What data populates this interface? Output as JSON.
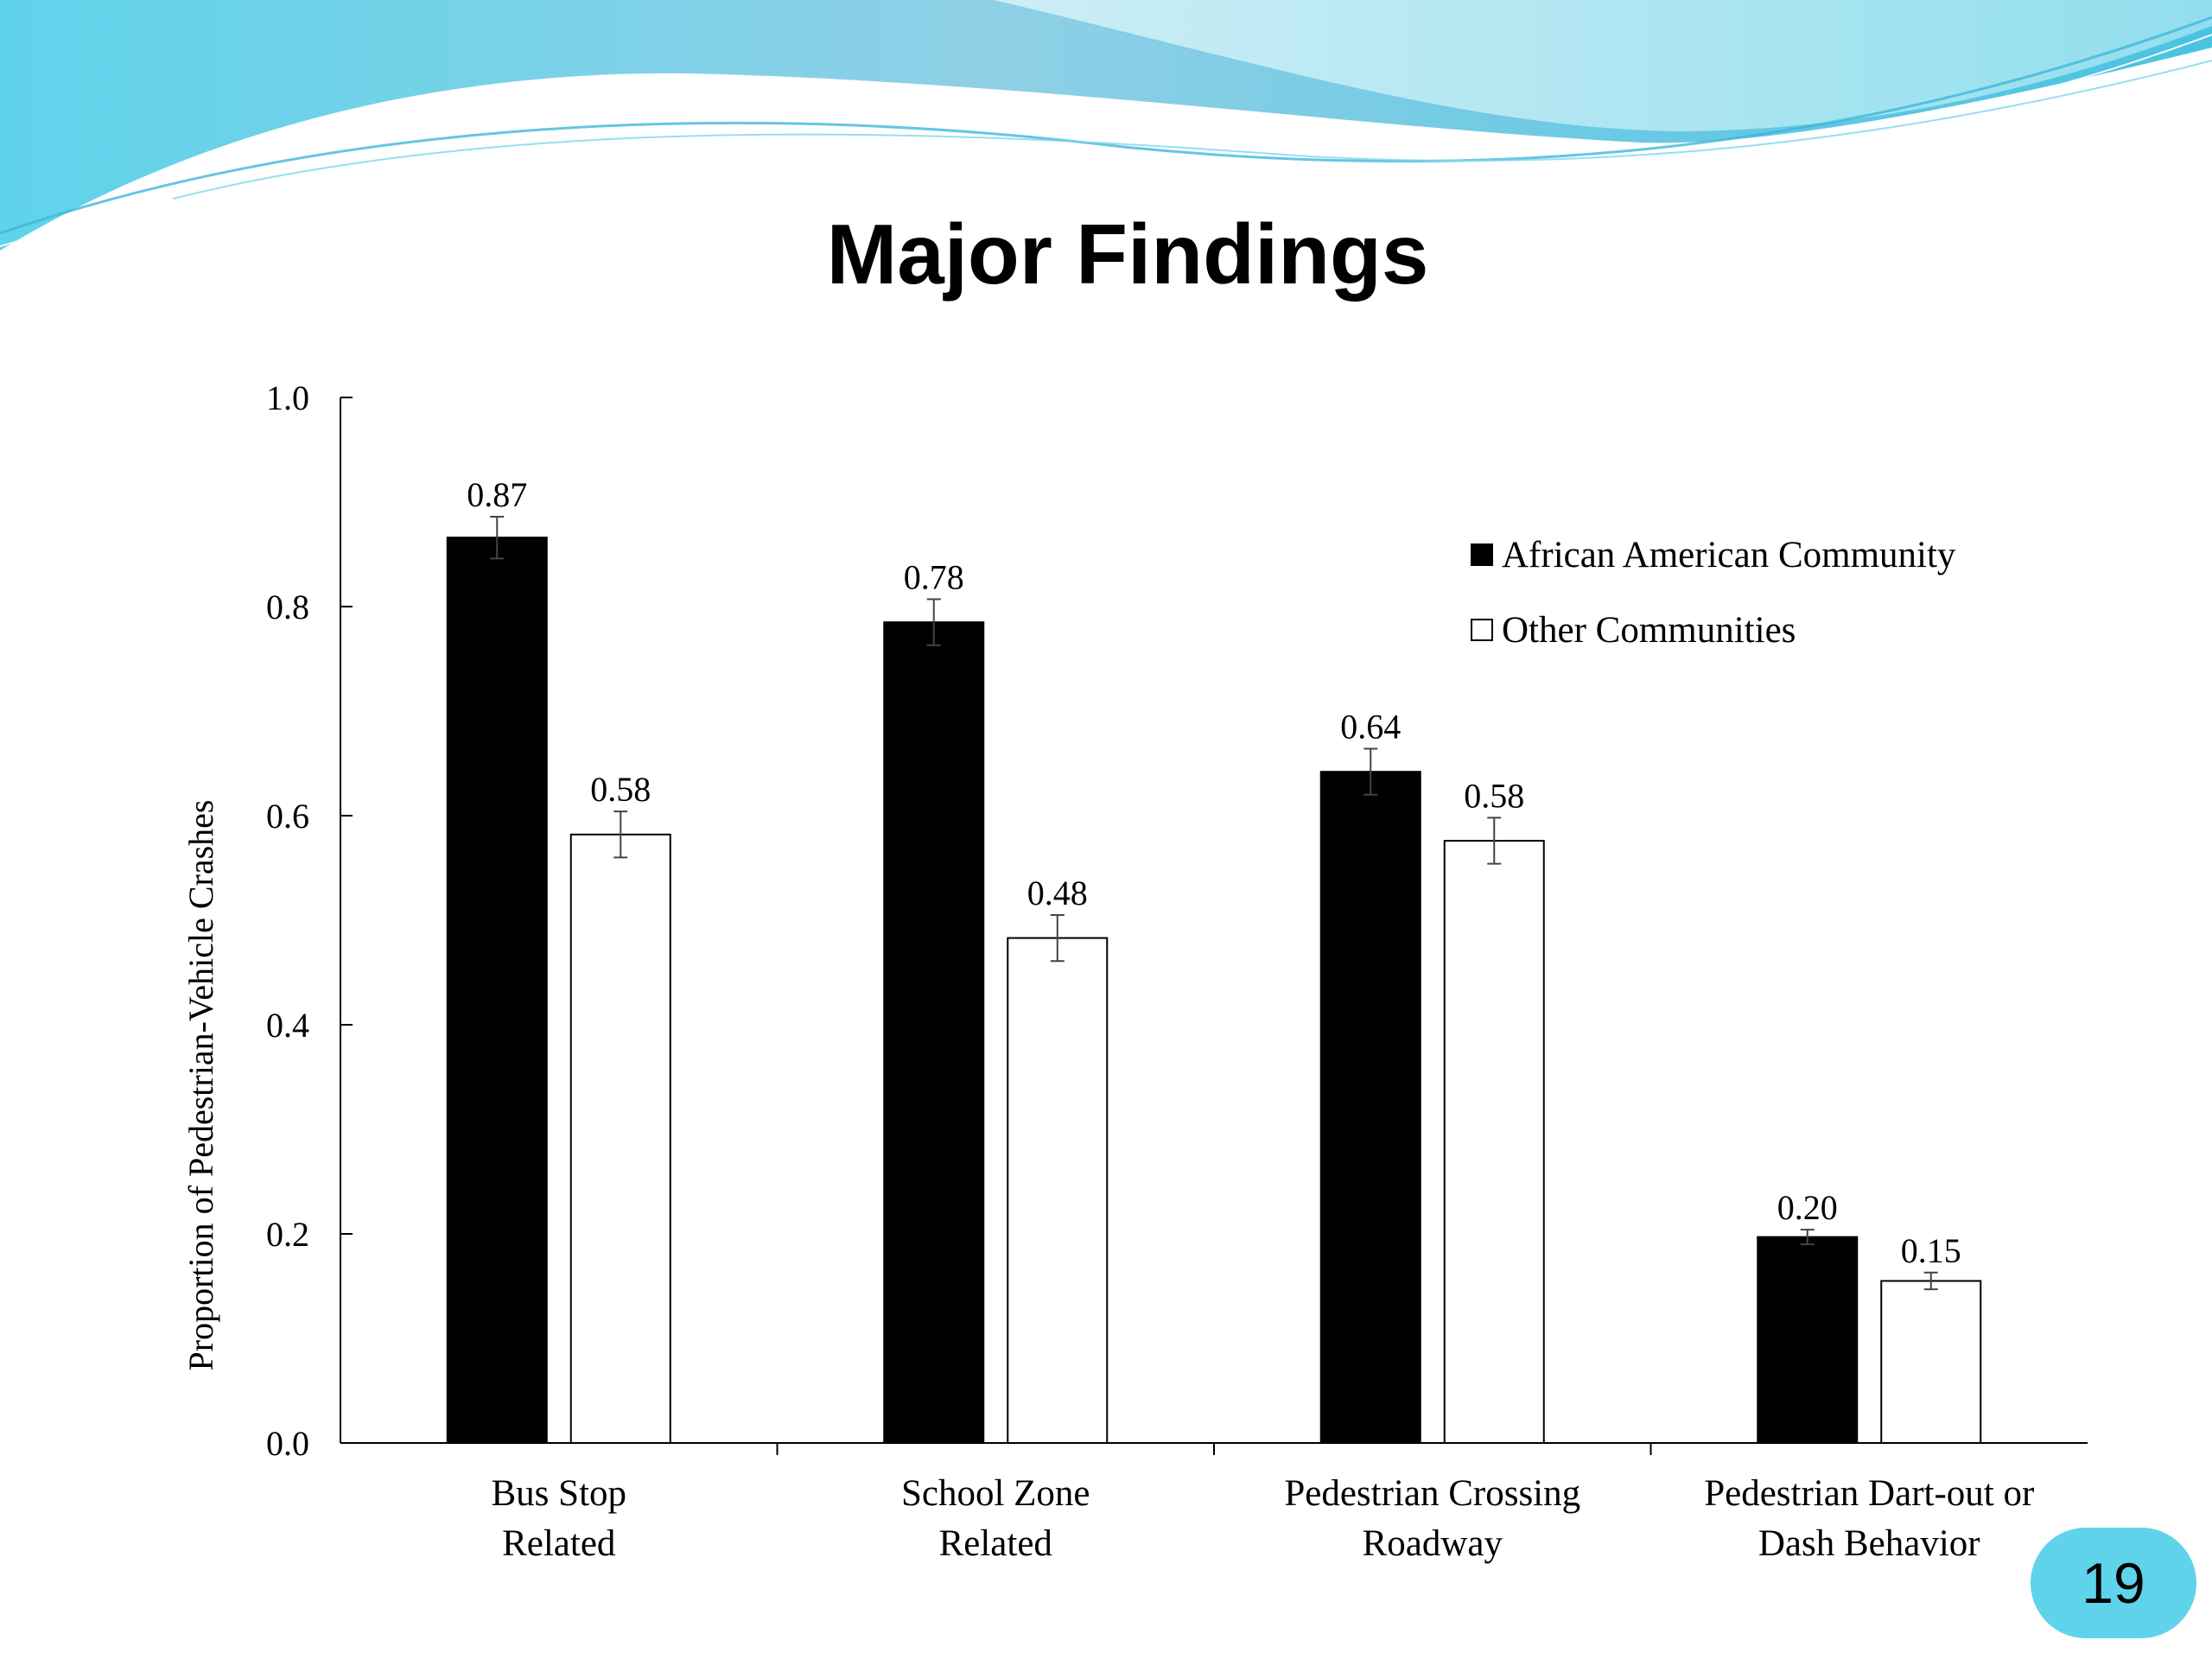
{
  "slide": {
    "title": "Major Findings",
    "page_number": "19",
    "colors": {
      "wave_light": "#bfeef6",
      "wave_mid": "#7fd6ea",
      "wave_dark": "#3fb6dc",
      "badge": "#5fd3ea"
    }
  },
  "chart_data": {
    "type": "bar",
    "title": "",
    "xlabel": "",
    "ylabel": "Proportion of Pedestrian-Vehicle Crashes",
    "ylim": [
      0.0,
      1.0
    ],
    "yticks": [
      "0.0",
      "0.2",
      "0.4",
      "0.6",
      "0.8",
      "1.0"
    ],
    "grid": false,
    "legend_position": "top-right",
    "categories": [
      [
        "Bus Stop",
        "Related"
      ],
      [
        "School Zone",
        "Related"
      ],
      [
        "Pedestrian Crossing",
        "Roadway"
      ],
      [
        "Pedestrian Dart-out or",
        "Dash Behavior"
      ]
    ],
    "series": [
      {
        "name": "African American Community",
        "color": "#000000",
        "values": [
          0.866,
          0.785,
          0.642,
          0.197
        ],
        "labels": [
          "0.87",
          "0.78",
          "0.64",
          "0.20"
        ],
        "error": [
          0.02,
          0.022,
          0.022,
          0.007
        ]
      },
      {
        "name": "Other Communities",
        "color": "#ffffff",
        "values": [
          0.582,
          0.483,
          0.576,
          0.155
        ],
        "labels": [
          "0.58",
          "0.48",
          "0.58",
          "0.15"
        ],
        "error": [
          0.022,
          0.022,
          0.022,
          0.008
        ]
      }
    ]
  }
}
